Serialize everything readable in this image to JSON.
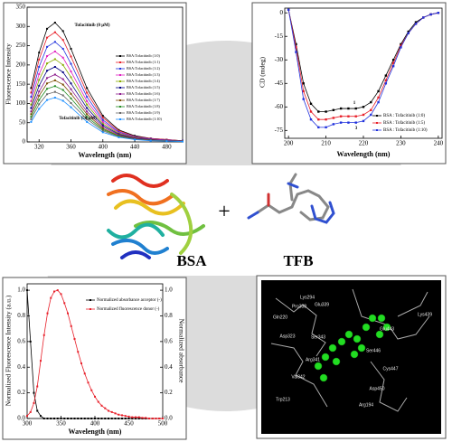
{
  "chart_data": [
    {
      "type": "line",
      "x_label": "Wavelength (nm)",
      "y_label": "Fluorescence Intensity",
      "annotations": [
        "Tofacitinib (0 μM)",
        "Tofacitinib (50 μM)"
      ],
      "x": [
        310,
        320,
        330,
        340,
        350,
        360,
        380,
        400,
        420,
        440,
        460,
        480,
        500
      ],
      "xlim": [
        305,
        500
      ],
      "xticks": [
        320,
        360,
        400,
        440,
        480
      ],
      "ylim": [
        0,
        350
      ],
      "yticks": [
        0,
        50,
        100,
        150,
        200,
        250,
        300,
        350
      ],
      "series": [
        {
          "name": "BSA:Tofacitinib (1:0)",
          "color": "#000000",
          "values": [
            140,
            232,
            294,
            310,
            288,
            242,
            140,
            68,
            31,
            16,
            9,
            6,
            3
          ]
        },
        {
          "name": "BSA:Tofacitinib (1:1)",
          "color": "#e8202a",
          "values": [
            128,
            214,
            271,
            285,
            265,
            222,
            128,
            63,
            29,
            14,
            9,
            6,
            3
          ]
        },
        {
          "name": "BSA:Tofacitinib (1:2)",
          "color": "#2233dd",
          "values": [
            117,
            195,
            247,
            260,
            242,
            203,
            117,
            57,
            26,
            13,
            8,
            5,
            3
          ]
        },
        {
          "name": "BSA:Tofacitinib (1:3)",
          "color": "#e020c0",
          "values": [
            106,
            176,
            223,
            235,
            219,
            183,
            106,
            52,
            24,
            12,
            7,
            5,
            2
          ]
        },
        {
          "name": "BSA:Tofacitinib (1:4)",
          "color": "#88aa00",
          "values": [
            97,
            161,
            204,
            215,
            200,
            168,
            97,
            47,
            22,
            11,
            6,
            4,
            2
          ]
        },
        {
          "name": "BSA:Tofacitinib (1:5)",
          "color": "#000080",
          "values": [
            88,
            146,
            185,
            195,
            181,
            152,
            88,
            43,
            20,
            10,
            6,
            4,
            2
          ]
        },
        {
          "name": "BSA:Tofacitinib (1:6)",
          "color": "#8b1a8b",
          "values": [
            79,
            131,
            166,
            175,
            163,
            137,
            79,
            39,
            18,
            9,
            5,
            4,
            2
          ]
        },
        {
          "name": "BSA:Tofacitinib (1:7)",
          "color": "#7a4a00",
          "values": [
            72,
            120,
            152,
            160,
            149,
            125,
            72,
            35,
            16,
            8,
            5,
            3,
            2
          ]
        },
        {
          "name": "BSA:Tofacitinib (1:8)",
          "color": "#228b22",
          "values": [
            65,
            109,
            138,
            145,
            135,
            113,
            65,
            32,
            15,
            7,
            4,
            3,
            1
          ]
        },
        {
          "name": "BSA:Tofacitinib (1:9)",
          "color": "#666666",
          "values": [
            59,
            98,
            124,
            130,
            121,
            101,
            59,
            29,
            13,
            7,
            4,
            3,
            1
          ]
        },
        {
          "name": "BSA:Tofacitinib (1:10)",
          "color": "#1e90ff",
          "values": [
            52,
            86,
            109,
            115,
            107,
            90,
            52,
            25,
            12,
            6,
            3,
            2,
            1
          ]
        }
      ]
    },
    {
      "type": "line",
      "x_label": "Wavelength (nm)",
      "y_label": "CD (mdeg)",
      "annotations": [
        "1",
        "3"
      ],
      "x": [
        200,
        202,
        204,
        206,
        208,
        210,
        212,
        214,
        216,
        218,
        220,
        222,
        224,
        226,
        228,
        230,
        232,
        234,
        236,
        238,
        240
      ],
      "xlim": [
        199,
        241
      ],
      "xticks": [
        200,
        210,
        220,
        230,
        240
      ],
      "ylim": [
        -80,
        3
      ],
      "yticks": [
        -75,
        -60,
        -45,
        -30,
        -15,
        0
      ],
      "series": [
        {
          "name": "BSA : Tofacitinib (1:0)",
          "color": "#000000",
          "values": [
            2,
            -20,
            -45,
            -58,
            -63,
            -63,
            -62,
            -61,
            -61,
            -61,
            -60,
            -57,
            -50,
            -40,
            -30,
            -20,
            -12,
            -6,
            -3,
            -1,
            0
          ]
        },
        {
          "name": "BSA : Tofacitinib (1:5)",
          "color": "#e8202a",
          "values": [
            2,
            -22,
            -50,
            -63,
            -68,
            -68,
            -67,
            -66,
            -66,
            -66,
            -65,
            -62,
            -54,
            -43,
            -32,
            -21,
            -13,
            -7,
            -3,
            -1,
            0
          ]
        },
        {
          "name": "BSA : Tofacitinib (1:10)",
          "color": "#2233dd",
          "values": [
            2,
            -25,
            -55,
            -68,
            -73,
            -73,
            -71,
            -70,
            -70,
            -70,
            -69,
            -65,
            -57,
            -45,
            -34,
            -22,
            -13,
            -7,
            -3,
            -1,
            0
          ]
        }
      ]
    },
    {
      "type": "line",
      "x_label": "Wavelength (nm)",
      "y_label": "Normalized Fluorescence Intensity (a.u.)",
      "y2_label": "Normalized absorbance",
      "x": [
        300,
        305,
        310,
        315,
        320,
        325,
        330,
        335,
        340,
        345,
        350,
        355,
        360,
        365,
        370,
        375,
        380,
        385,
        390,
        395,
        400,
        405,
        410,
        415,
        420,
        425,
        430,
        435,
        440,
        445,
        450,
        455,
        460,
        465,
        470,
        475,
        480,
        485,
        490,
        495,
        500
      ],
      "xlim": [
        300,
        500
      ],
      "xticks": [
        300,
        350,
        400,
        450,
        500
      ],
      "ylim": [
        0,
        1.05
      ],
      "yticks": [
        {
          "value": 0,
          "label": "0.0"
        },
        0.2,
        0.4,
        0.6,
        0.8,
        {
          "value": 1,
          "label": "1.0"
        }
      ],
      "y2lim": [
        0,
        1.05
      ],
      "y2ticks": [
        {
          "value": 0,
          "label": "0.0"
        },
        0.2,
        0.4,
        0.6,
        0.8,
        {
          "value": 1,
          "label": "1.0"
        }
      ],
      "series": [
        {
          "name": "Normalized absorbance acceptor (-)",
          "color": "#000000",
          "axis": "y2",
          "values": [
            1,
            0.6,
            0.2,
            0.06,
            0.02,
            0,
            0,
            0,
            0,
            0,
            0,
            0,
            0,
            0,
            0,
            0,
            0,
            0,
            0,
            0,
            0,
            0,
            0,
            0,
            0,
            0,
            0,
            0,
            0,
            0,
            0,
            0,
            0,
            0,
            0,
            0,
            0,
            0,
            0,
            0,
            0
          ]
        },
        {
          "name": "Normalized fluorescence donor (-)",
          "color": "#e8202a",
          "values": [
            0.02,
            0.05,
            0.12,
            0.25,
            0.45,
            0.65,
            0.82,
            0.94,
            0.99,
            1,
            0.97,
            0.9,
            0.82,
            0.72,
            0.62,
            0.52,
            0.43,
            0.35,
            0.28,
            0.22,
            0.17,
            0.13,
            0.1,
            0.08,
            0.06,
            0.05,
            0.04,
            0.03,
            0.025,
            0.02,
            0.015,
            0.01,
            0.01,
            0.01,
            0.005,
            0.005,
            0,
            0,
            0,
            0,
            0
          ]
        }
      ]
    }
  ],
  "middle": {
    "protein_label": "BSA",
    "operator": "+",
    "ligand_label": "TFB"
  },
  "docking": {
    "residues": [
      "Lys294",
      "Pro338",
      "Glu339",
      "Gln220",
      "Ser343",
      "Asp323",
      "Arg341",
      "Val342",
      "Trp213",
      "Glu443",
      "Lys439",
      "Ser446",
      "Cys447",
      "Asp450",
      "Arg194"
    ]
  }
}
